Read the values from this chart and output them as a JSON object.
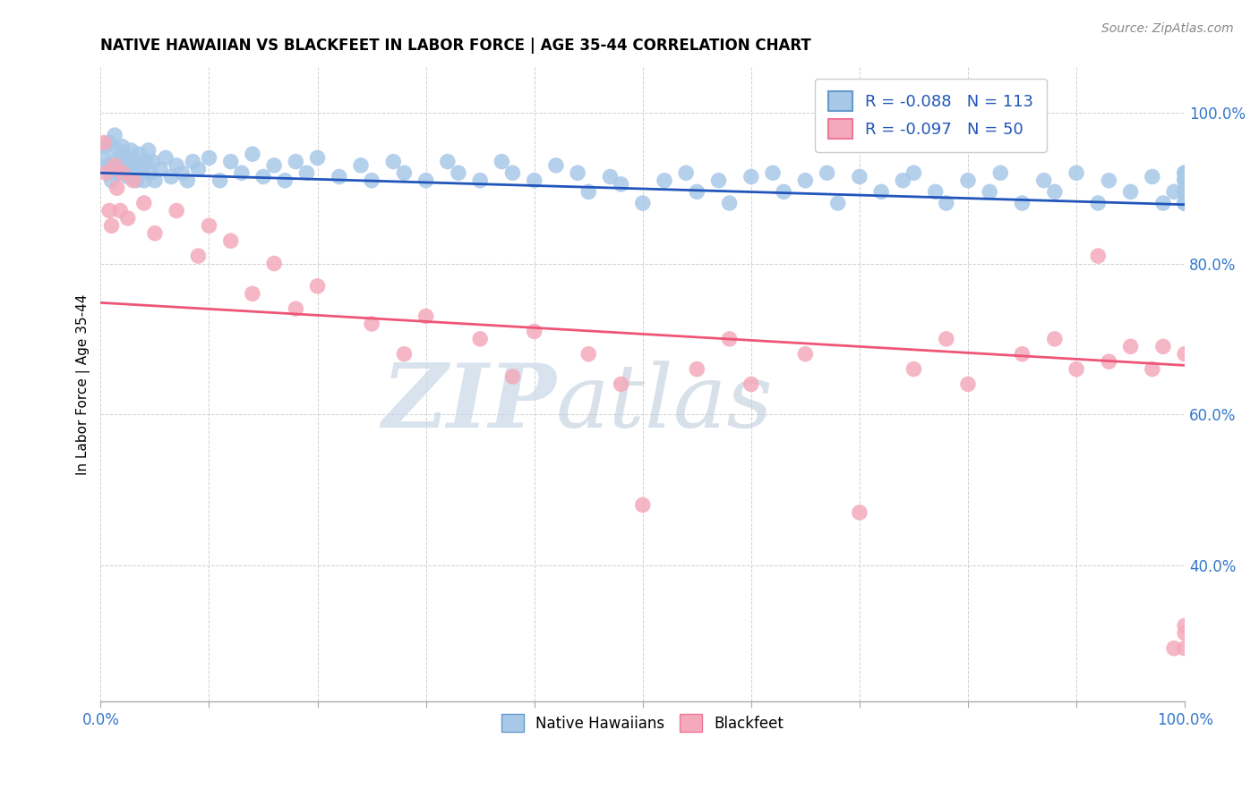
{
  "title": "NATIVE HAWAIIAN VS BLACKFEET IN LABOR FORCE | AGE 35-44 CORRELATION CHART",
  "source_text": "Source: ZipAtlas.com",
  "ylabel": "In Labor Force | Age 35-44",
  "xlim": [
    0.0,
    1.0
  ],
  "ylim": [
    0.22,
    1.06
  ],
  "x_ticks": [
    0.0,
    0.1,
    0.2,
    0.3,
    0.4,
    0.5,
    0.6,
    0.7,
    0.8,
    0.9,
    1.0
  ],
  "y_ticks": [
    0.4,
    0.6,
    0.8,
    1.0
  ],
  "y_tick_labels": [
    "40.0%",
    "60.0%",
    "80.0%",
    "100.0%"
  ],
  "legend_r1": "-0.088",
  "legend_n1": "113",
  "legend_r2": "-0.097",
  "legend_n2": "50",
  "color_blue": "#A8C8E8",
  "color_pink": "#F4AABB",
  "line_color_blue": "#2255BB",
  "line_color_pink": "#EE5577",
  "watermark_zip": "ZIP",
  "watermark_atlas": "atlas",
  "blue_line_x": [
    0.0,
    1.0
  ],
  "blue_line_y": [
    0.92,
    0.878
  ],
  "pink_line_x": [
    0.0,
    1.0
  ],
  "pink_line_y": [
    0.748,
    0.665
  ],
  "blue_x": [
    0.003,
    0.005,
    0.007,
    0.008,
    0.009,
    0.01,
    0.012,
    0.013,
    0.015,
    0.016,
    0.018,
    0.019,
    0.02,
    0.022,
    0.023,
    0.025,
    0.027,
    0.028,
    0.03,
    0.032,
    0.033,
    0.035,
    0.037,
    0.038,
    0.04,
    0.042,
    0.044,
    0.046,
    0.048,
    0.05,
    0.055,
    0.06,
    0.065,
    0.07,
    0.075,
    0.08,
    0.085,
    0.09,
    0.1,
    0.11,
    0.12,
    0.13,
    0.14,
    0.15,
    0.16,
    0.17,
    0.18,
    0.19,
    0.2,
    0.22,
    0.24,
    0.25,
    0.27,
    0.28,
    0.3,
    0.32,
    0.33,
    0.35,
    0.37,
    0.38,
    0.4,
    0.42,
    0.44,
    0.45,
    0.47,
    0.48,
    0.5,
    0.52,
    0.54,
    0.55,
    0.57,
    0.58,
    0.6,
    0.62,
    0.63,
    0.65,
    0.67,
    0.68,
    0.7,
    0.72,
    0.74,
    0.75,
    0.77,
    0.78,
    0.8,
    0.82,
    0.83,
    0.85,
    0.87,
    0.88,
    0.9,
    0.92,
    0.93,
    0.95,
    0.97,
    0.98,
    0.99,
    1.0,
    1.0,
    1.0,
    1.0,
    1.0,
    1.0,
    1.0,
    1.0,
    1.0,
    1.0,
    1.0,
    1.0,
    1.0,
    1.0,
    1.0,
    1.0
  ],
  "blue_y": [
    0.94,
    0.955,
    0.93,
    0.96,
    0.92,
    0.91,
    0.935,
    0.97,
    0.93,
    0.95,
    0.92,
    0.945,
    0.955,
    0.925,
    0.94,
    0.915,
    0.93,
    0.95,
    0.92,
    0.935,
    0.91,
    0.945,
    0.93,
    0.92,
    0.91,
    0.935,
    0.95,
    0.92,
    0.935,
    0.91,
    0.925,
    0.94,
    0.915,
    0.93,
    0.92,
    0.91,
    0.935,
    0.925,
    0.94,
    0.91,
    0.935,
    0.92,
    0.945,
    0.915,
    0.93,
    0.91,
    0.935,
    0.92,
    0.94,
    0.915,
    0.93,
    0.91,
    0.935,
    0.92,
    0.91,
    0.935,
    0.92,
    0.91,
    0.935,
    0.92,
    0.91,
    0.93,
    0.92,
    0.895,
    0.915,
    0.905,
    0.88,
    0.91,
    0.92,
    0.895,
    0.91,
    0.88,
    0.915,
    0.92,
    0.895,
    0.91,
    0.92,
    0.88,
    0.915,
    0.895,
    0.91,
    0.92,
    0.895,
    0.88,
    0.91,
    0.895,
    0.92,
    0.88,
    0.91,
    0.895,
    0.92,
    0.88,
    0.91,
    0.895,
    0.915,
    0.88,
    0.895,
    0.92,
    0.895,
    0.88,
    0.91,
    0.895,
    0.92,
    0.88,
    0.91,
    0.895,
    0.915,
    0.88,
    0.895,
    0.92,
    0.88,
    0.91,
    0.895
  ],
  "pink_x": [
    0.003,
    0.005,
    0.008,
    0.01,
    0.013,
    0.015,
    0.018,
    0.02,
    0.025,
    0.03,
    0.04,
    0.05,
    0.07,
    0.09,
    0.1,
    0.12,
    0.14,
    0.16,
    0.18,
    0.2,
    0.25,
    0.28,
    0.3,
    0.35,
    0.38,
    0.4,
    0.45,
    0.48,
    0.5,
    0.55,
    0.58,
    0.6,
    0.65,
    0.7,
    0.75,
    0.78,
    0.8,
    0.85,
    0.88,
    0.9,
    0.92,
    0.93,
    0.95,
    0.97,
    0.98,
    0.99,
    1.0,
    1.0,
    1.0,
    1.0
  ],
  "pink_y": [
    0.96,
    0.92,
    0.87,
    0.85,
    0.93,
    0.9,
    0.87,
    0.92,
    0.86,
    0.91,
    0.88,
    0.84,
    0.87,
    0.81,
    0.85,
    0.83,
    0.76,
    0.8,
    0.74,
    0.77,
    0.72,
    0.68,
    0.73,
    0.7,
    0.65,
    0.71,
    0.68,
    0.64,
    0.48,
    0.66,
    0.7,
    0.64,
    0.68,
    0.47,
    0.66,
    0.7,
    0.64,
    0.68,
    0.7,
    0.66,
    0.81,
    0.67,
    0.69,
    0.66,
    0.69,
    0.29,
    0.68,
    0.29,
    0.31,
    0.32
  ]
}
